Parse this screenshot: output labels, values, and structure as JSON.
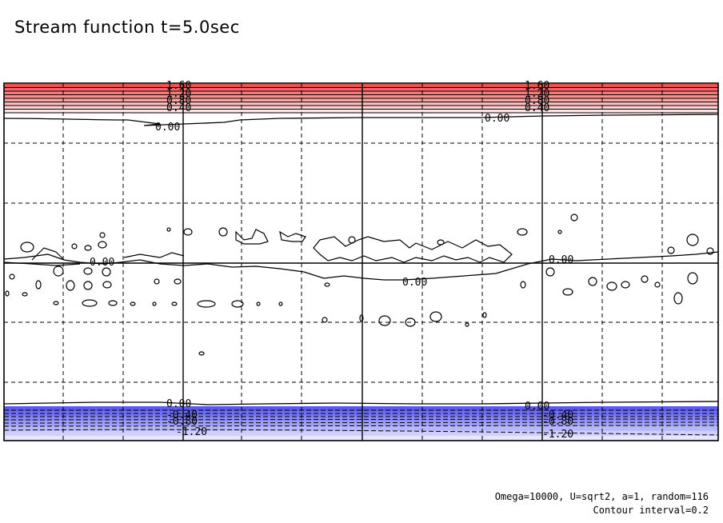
{
  "chart_data": {
    "type": "contour",
    "title": "Stream function t=5.0sec",
    "params_label": "Omega=10000, U=sqrt2, a=1, random=116",
    "interval_label": "Contour interval=0.2",
    "contour_interval": 0.2,
    "grid": true,
    "positive_band": {
      "color_high": "#f25050",
      "color_low": "#ffe6e6",
      "levels": [
        1.6,
        1.4,
        1.2,
        1.0,
        0.8,
        0.6,
        0.4,
        0.2
      ],
      "labels": [
        "1.60",
        "1.20",
        "0.80",
        "0.40"
      ]
    },
    "negative_band": {
      "color_low": "#5a5af2",
      "color_high": "#e6e6ff",
      "levels": [
        -0.2,
        -0.4,
        -0.6,
        -0.8,
        -1.0,
        -1.2,
        -1.4
      ],
      "labels": [
        "0.00",
        "-0.40",
        "-0.80",
        "-1.20"
      ]
    },
    "zero_labels": [
      "0.00",
      "0.00",
      "0.00",
      "0.00",
      "0.00",
      "0.00",
      "0.00",
      "0.00"
    ]
  }
}
